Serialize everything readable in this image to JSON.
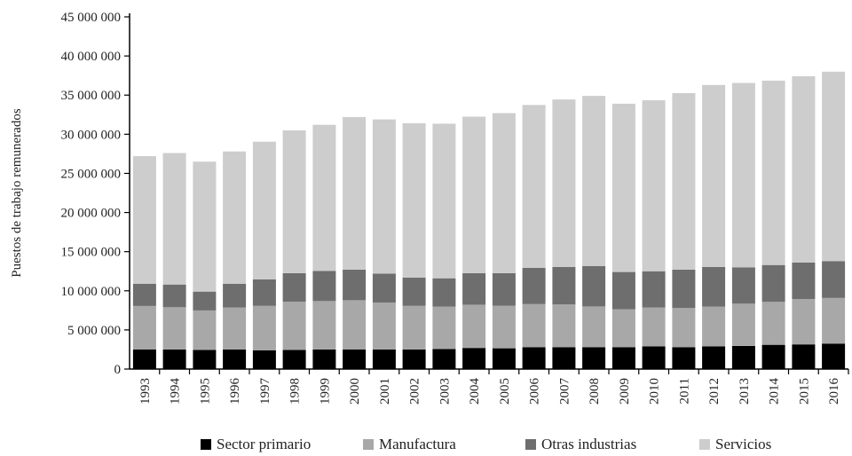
{
  "chart_data": {
    "type": "bar",
    "stacked": true,
    "ylabel": "Puestos de trabajo remunerados",
    "xlabel": "",
    "ylim": [
      0,
      45000000
    ],
    "yticks": [
      0,
      5000000,
      10000000,
      15000000,
      20000000,
      25000000,
      30000000,
      35000000,
      40000000,
      45000000
    ],
    "ytick_labels": [
      "0",
      "5 000 000",
      "10 000 000",
      "15 000 000",
      "20 000 000",
      "25 000 000",
      "30 000 000",
      "35 000 000",
      "40 000 000",
      "45 000 000"
    ],
    "grid": false,
    "legend_position": "bottom",
    "categories": [
      "1993",
      "1994",
      "1995",
      "1996",
      "1997",
      "1998",
      "1999",
      "2000",
      "2001",
      "2002",
      "2003",
      "2004",
      "2005",
      "2006",
      "2007",
      "2008",
      "2009",
      "2010",
      "2011",
      "2012",
      "2013",
      "2014",
      "2015",
      "2016"
    ],
    "series": [
      {
        "name": "Sector primario",
        "color": "#000000",
        "values": [
          2500000,
          2500000,
          2450000,
          2500000,
          2400000,
          2450000,
          2500000,
          2500000,
          2500000,
          2500000,
          2550000,
          2700000,
          2650000,
          2800000,
          2800000,
          2800000,
          2800000,
          2900000,
          2800000,
          2900000,
          2950000,
          3100000,
          3150000,
          3250000
        ]
      },
      {
        "name": "Manufactura",
        "color": "#a8a8a8",
        "values": [
          5550000,
          5400000,
          5050000,
          5350000,
          5700000,
          6150000,
          6200000,
          6300000,
          6000000,
          5600000,
          5450000,
          5500000,
          5450000,
          5500000,
          5450000,
          5200000,
          4850000,
          4950000,
          5000000,
          5100000,
          5400000,
          5500000,
          5800000,
          5850000
        ]
      },
      {
        "name": "Otras industrias",
        "color": "#6e6e6e",
        "values": [
          2850000,
          2900000,
          2400000,
          3050000,
          3350000,
          3650000,
          3850000,
          3900000,
          3700000,
          3600000,
          3600000,
          4050000,
          4150000,
          4650000,
          4800000,
          5150000,
          4750000,
          4650000,
          4900000,
          5050000,
          4650000,
          4700000,
          4650000,
          4700000
        ]
      },
      {
        "name": "Servicios",
        "color": "#cdcdcd",
        "values": [
          16300000,
          16800000,
          16600000,
          16900000,
          17600000,
          18250000,
          18650000,
          19500000,
          19700000,
          19700000,
          19750000,
          20000000,
          20450000,
          20800000,
          21400000,
          21750000,
          21500000,
          21850000,
          22550000,
          23250000,
          23550000,
          23550000,
          23800000,
          24200000
        ]
      }
    ]
  }
}
